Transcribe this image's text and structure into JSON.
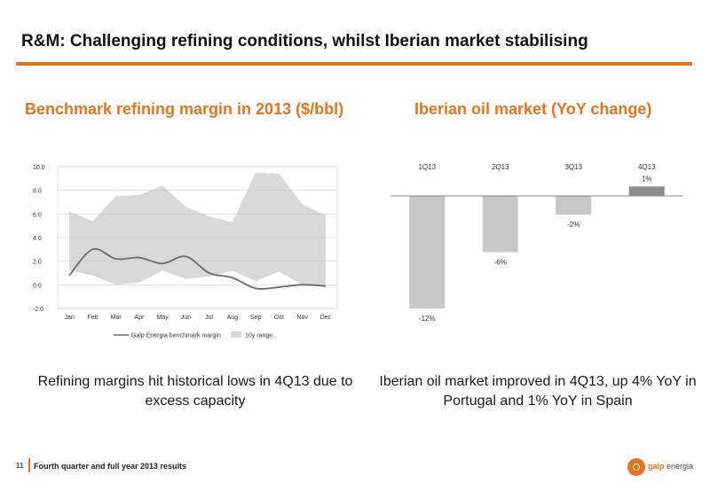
{
  "page": {
    "title": "R&M: Challenging refining conditions, whilst Iberian market stabilising",
    "left_title": "Benchmark refining margin in 2013 ($/bbl)",
    "right_title": "Iberian oil market (YoY change)",
    "left_caption": "Refining margins hit historical lows in 4Q13 due to excess capacity",
    "right_caption": "Iberian oil market improved in 4Q13, up 4% YoY in Portugal and 1% YoY in Spain",
    "footer_page": "11",
    "footer_text": "Fourth quarter and full year 2013 results",
    "logo_brand": "galp",
    "logo_word": "energia"
  },
  "colors": {
    "accent": "#e8731f",
    "range_fill": "#d9d9d9",
    "margin_line": "#6b6b6b",
    "bar_normal": "#c8c8c8",
    "bar_positive": "#8c8c8c"
  },
  "chart_data": [
    {
      "type": "area",
      "title": "Benchmark refining margin in 2013 ($/bbl)",
      "categories": [
        "Jan",
        "Feb",
        "Mar",
        "Apr",
        "May",
        "Jun",
        "Jul",
        "Aug",
        "Sep",
        "Oct",
        "Nov",
        "Dec"
      ],
      "y_ticks": [
        "10.0",
        "8.0",
        "6.0",
        "4.0",
        "2.0",
        "0.0",
        "-2.0"
      ],
      "ylim": [
        -2,
        10
      ],
      "grid": true,
      "legend": "bottom",
      "series": [
        {
          "name": "Galp Energia benchmark margin",
          "kind": "line",
          "values": [
            0.8,
            3.0,
            2.2,
            2.3,
            1.8,
            2.4,
            1.0,
            0.6,
            -0.3,
            -0.2,
            0.0,
            -0.1
          ]
        },
        {
          "name": "10y range",
          "kind": "range",
          "low": [
            1.2,
            0.8,
            0.0,
            0.2,
            1.2,
            0.5,
            0.7,
            1.2,
            0.3,
            1.1,
            0.0,
            0.0
          ],
          "high": [
            6.2,
            5.4,
            7.5,
            7.6,
            8.4,
            6.6,
            5.8,
            5.3,
            9.5,
            9.4,
            6.8,
            5.9
          ]
        }
      ]
    },
    {
      "type": "bar",
      "title": "Iberian oil market (YoY change)",
      "categories": [
        "1Q13",
        "2Q13",
        "3Q13",
        "4Q13"
      ],
      "values": [
        -12,
        -6,
        -2,
        1
      ],
      "labels": [
        "-12%",
        "-6%",
        "-2%",
        "1%"
      ],
      "ylim": [
        -12,
        1
      ]
    }
  ]
}
